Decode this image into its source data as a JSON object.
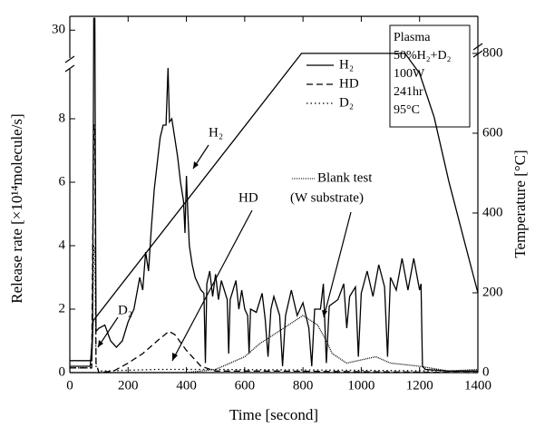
{
  "chart_data": {
    "type": "line",
    "x_label": "Time [second]",
    "y_label": "Release rate [×10¹⁴molecule/s]",
    "y2_label": "Temperature [°C]",
    "xlim": [
      0,
      1400
    ],
    "xticks": [
      0,
      200,
      400,
      600,
      800,
      1000,
      1200,
      1400
    ],
    "ylim": [
      0,
      9.6
    ],
    "yticks": [
      0,
      2,
      4,
      6,
      8
    ],
    "ylim_upper": [
      28.5,
      30.7
    ],
    "yticks_upper": [
      30
    ],
    "y2lim": [
      0,
      893
    ],
    "y2ticks": [
      0,
      200,
      400,
      600,
      800
    ],
    "series": [
      {
        "name": "H₂",
        "dash": "none",
        "x": [
          0,
          70,
          78,
          82,
          86,
          90,
          100,
          120,
          140,
          160,
          180,
          200,
          220,
          240,
          250,
          260,
          270,
          280,
          290,
          300,
          310,
          320,
          330,
          337,
          342,
          350,
          360,
          370,
          380,
          390,
          395,
          400,
          405,
          410,
          420,
          430,
          440,
          450,
          460,
          465,
          470,
          480,
          490,
          500,
          510,
          520,
          540,
          545,
          550,
          570,
          580,
          590,
          600,
          610,
          615,
          620,
          640,
          660,
          670,
          680,
          690,
          700,
          720,
          730,
          740,
          760,
          780,
          800,
          820,
          830,
          840,
          860,
          870,
          880,
          890,
          920,
          940,
          950,
          960,
          980,
          990,
          1000,
          1020,
          1040,
          1060,
          1080,
          1090,
          1100,
          1120,
          1140,
          1160,
          1180,
          1200,
          1205,
          1210,
          1220,
          1300,
          1400
        ],
        "values": [
          0.2,
          0.2,
          1.2,
          30.6,
          30.6,
          1.3,
          1.4,
          1.5,
          1.0,
          0.8,
          1.0,
          1.6,
          2.0,
          3.0,
          2.6,
          3.8,
          3.2,
          4.6,
          5.8,
          6.6,
          7.4,
          7.8,
          7.8,
          9.6,
          7.9,
          8.0,
          7.4,
          6.8,
          6.0,
          5.4,
          4.4,
          6.2,
          5.0,
          4.0,
          3.4,
          3.0,
          2.8,
          2.6,
          2.5,
          0.3,
          2.8,
          3.2,
          2.4,
          3.1,
          2.3,
          2.9,
          2.3,
          0.6,
          2.3,
          2.9,
          2.0,
          2.6,
          2.0,
          1.8,
          0.6,
          2.0,
          1.9,
          2.5,
          1.7,
          0.5,
          2.0,
          2.4,
          1.8,
          0.2,
          1.8,
          2.6,
          1.8,
          2.2,
          1.4,
          0.2,
          2.0,
          2.0,
          2.8,
          0.3,
          2.1,
          2.3,
          2.8,
          1.4,
          2.4,
          2.7,
          0.5,
          2.5,
          3.2,
          2.4,
          3.4,
          2.7,
          0.5,
          3.0,
          2.6,
          3.6,
          2.6,
          3.6,
          2.6,
          2.8,
          0.2,
          0.1,
          0.05,
          0.05
        ]
      },
      {
        "name": "HD",
        "dash": "7 4",
        "x": [
          0,
          75,
          82,
          86,
          90,
          100,
          150,
          200,
          250,
          300,
          340,
          360,
          400,
          450,
          500,
          700,
          1400
        ],
        "values": [
          0.15,
          0.15,
          7.8,
          7.8,
          0.3,
          0,
          0.05,
          0.3,
          0.6,
          1.0,
          1.3,
          1.2,
          0.7,
          0.2,
          0.05,
          0.05,
          0
        ]
      },
      {
        "name": "D₂",
        "dash": "1.5 3",
        "x": [
          0,
          75,
          82,
          86,
          90,
          100,
          300,
          500,
          1400
        ],
        "values": [
          0.15,
          0.15,
          4,
          4,
          0.2,
          0.05,
          0.1,
          0.1,
          0.05
        ]
      }
    ],
    "blank_test": {
      "name": "Blank test",
      "x": [
        0,
        400,
        500,
        550,
        600,
        650,
        700,
        750,
        800,
        850,
        880,
        900,
        950,
        1000,
        1050,
        1100,
        1200,
        1300,
        1400
      ],
      "values": [
        0,
        0,
        0.1,
        0.3,
        0.5,
        0.9,
        1.2,
        1.5,
        1.8,
        1.5,
        1.0,
        0.6,
        0.3,
        0.4,
        0.5,
        0.3,
        0.2,
        0.05,
        0.1
      ]
    },
    "temperature": {
      "axis": "y2",
      "x": [
        0,
        75,
        80,
        795,
        1150,
        1200,
        1250,
        1300,
        1350,
        1400
      ],
      "values": [
        30,
        30,
        130,
        800,
        800,
        750,
        640,
        480,
        340,
        200
      ]
    },
    "annotations": [
      "H₂",
      "HD",
      "D₂",
      "(W substrate)"
    ],
    "conditions": [
      "Plasma",
      "50%H₂+D₂",
      "100W",
      "241hr",
      "95°C"
    ]
  }
}
